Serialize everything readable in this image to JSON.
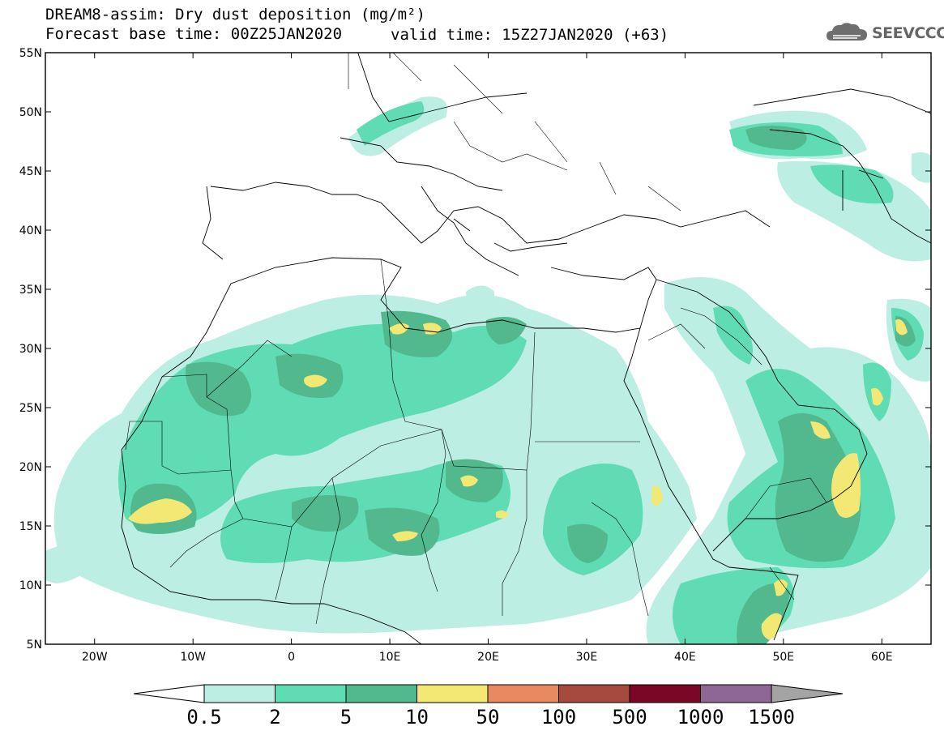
{
  "header": {
    "title_line1": "DREAM8-assim: Dry dust deposition (mg/m²)",
    "title_line2": "Forecast base time: 00Z25JAN2020",
    "valid_time": "valid time: 15Z27JAN2020 (+63)",
    "logo_text": "SEEVCCC",
    "logo_icon": "cloud-logo-icon"
  },
  "map": {
    "lon_range": [
      -25,
      65
    ],
    "lat_range": [
      5,
      55
    ],
    "lat_ticks": [
      "55N",
      "50N",
      "45N",
      "40N",
      "35N",
      "30N",
      "25N",
      "20N",
      "15N",
      "10N",
      "5N"
    ],
    "lat_values": [
      55,
      50,
      45,
      40,
      35,
      30,
      25,
      20,
      15,
      10,
      5
    ],
    "lon_ticks": [
      "20W",
      "10W",
      "0",
      "10E",
      "20E",
      "30E",
      "40E",
      "50E",
      "60E"
    ],
    "lon_values": [
      -20,
      -10,
      0,
      10,
      20,
      30,
      40,
      50,
      60
    ]
  },
  "colorbar": {
    "colors": [
      "#bdeee3",
      "#5fdcb3",
      "#52b88e",
      "#f3e873",
      "#e78a62",
      "#a54a3c",
      "#7b0726",
      "#8f6797"
    ],
    "low_color": "#ffffff",
    "high_color": "#a4a4a4",
    "labels": [
      "0.5",
      "2",
      "5",
      "10",
      "50",
      "100",
      "500",
      "1000",
      "1500"
    ]
  }
}
